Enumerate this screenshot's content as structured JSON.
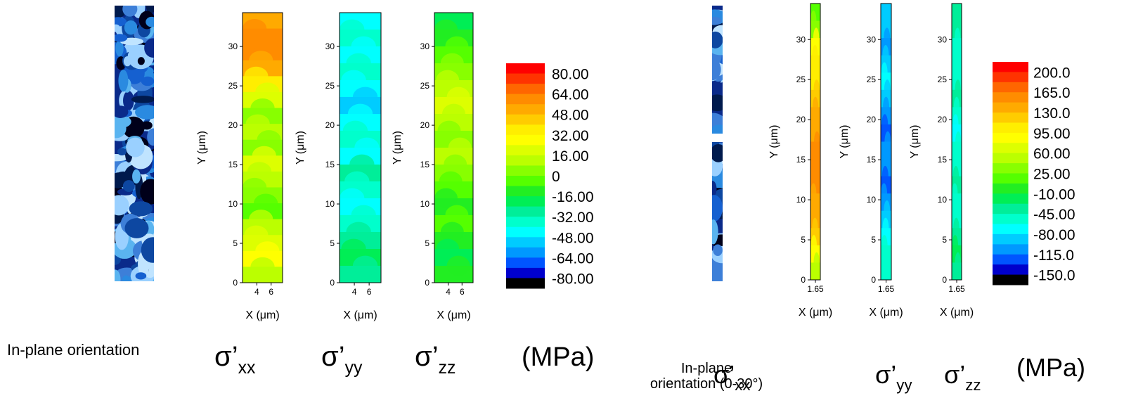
{
  "chart_data": [
    {
      "type": "contour",
      "label": {
        "symbol": "σ’",
        "subscript": "xx"
      },
      "xlabel": "X (μm)",
      "ylabel": "Y (μm)",
      "xlim": [
        2,
        7.6
      ],
      "ylim": [
        0,
        34.3
      ],
      "xticks": [
        4,
        6
      ],
      "yticks": [
        0,
        5,
        10,
        15,
        20,
        25,
        30
      ]
    },
    {
      "type": "contour",
      "label": {
        "symbol": "σ’",
        "subscript": "yy"
      },
      "xlabel": "X (μm)",
      "ylabel": "Y (μm)",
      "xlim": [
        2,
        7.6
      ],
      "ylim": [
        0,
        34.3
      ],
      "xticks": [
        4,
        6
      ],
      "yticks": [
        0,
        5,
        10,
        15,
        20,
        25,
        30
      ]
    },
    {
      "type": "contour",
      "label": {
        "symbol": "σ’",
        "subscript": "zz"
      },
      "xlabel": "X (μm)",
      "ylabel": "Y (μm)",
      "xlim": [
        2,
        7.6
      ],
      "ylim": [
        0,
        34.3
      ],
      "xticks": [
        4,
        6
      ],
      "yticks": [
        0,
        5,
        10,
        15,
        20,
        25,
        30
      ]
    },
    {
      "type": "colorbar",
      "lim": [
        -88,
        88
      ],
      "ticks": [
        {
          "value": 80,
          "label": "80.00"
        },
        {
          "value": 64,
          "label": "64.00"
        },
        {
          "value": 48,
          "label": "48.00"
        },
        {
          "value": 32,
          "label": "32.00"
        },
        {
          "value": 16,
          "label": "16.00"
        },
        0,
        {
          "value": -16,
          "label": "-16.00"
        },
        {
          "value": -32,
          "label": "-32.00"
        },
        {
          "value": -48,
          "label": "-48.00"
        },
        {
          "value": -64,
          "label": "-64.00"
        },
        {
          "value": -80,
          "label": "-80.00"
        }
      ],
      "colors": [
        "#ff0000",
        "#ff3300",
        "#ff6600",
        "#ff8c00",
        "#ffaa00",
        "#ffcc00",
        "#ffee00",
        "#ffff00",
        "#ddff00",
        "#bbff00",
        "#88ff00",
        "#55ff00",
        "#22ee22",
        "#00ee55",
        "#00ee99",
        "#00ffcc",
        "#00ffff",
        "#00ccff",
        "#0099ff",
        "#0055ff",
        "#0000cc",
        "#000000"
      ]
    },
    {
      "type": "contour",
      "label": {
        "symbol": "σ’",
        "subscript": "xx"
      },
      "xlabel": "X (μm)",
      "ylabel": "Y (μm)",
      "xlim": [
        1.6,
        1.7
      ],
      "ylim": [
        0,
        34.5
      ],
      "xticks": [
        1.65
      ],
      "yticks": [
        0,
        5,
        10,
        15,
        20,
        25,
        30
      ]
    },
    {
      "type": "contour",
      "label": {
        "symbol": "σ’",
        "subscript": "yy"
      },
      "xlabel": "X (μm)",
      "ylabel": "Y (μm)",
      "xlim": [
        1.6,
        1.7
      ],
      "ylim": [
        0,
        34.5
      ],
      "xticks": [
        1.65
      ],
      "yticks": [
        0,
        5,
        10,
        15,
        20,
        25,
        30
      ]
    },
    {
      "type": "contour",
      "label": {
        "symbol": "σ’",
        "subscript": "zz"
      },
      "xlabel": "X (μm)",
      "ylabel": "Y (μm)",
      "xlim": [
        1.6,
        1.7
      ],
      "ylim": [
        0,
        34.5
      ],
      "xticks": [
        1.65
      ],
      "yticks": [
        0,
        5,
        10,
        15,
        20,
        25,
        30
      ]
    },
    {
      "type": "colorbar",
      "lim": [
        -167.5,
        217.5
      ],
      "ticks": [
        {
          "value": 200,
          "label": "200.0"
        },
        {
          "value": 165,
          "label": "165.0"
        },
        {
          "value": 130,
          "label": "130.0"
        },
        {
          "value": 95,
          "label": "95.00"
        },
        {
          "value": 60,
          "label": "60.00"
        },
        {
          "value": 25,
          "label": "25.00"
        },
        {
          "value": -10,
          "label": "-10.00"
        },
        {
          "value": -45,
          "label": "-45.00"
        },
        {
          "value": -80,
          "label": "-80.00"
        },
        {
          "value": -115,
          "label": "-115.0"
        },
        {
          "value": -150,
          "label": "-150.0"
        }
      ],
      "colors": [
        "#ff0000",
        "#ff3300",
        "#ff6600",
        "#ff8c00",
        "#ffaa00",
        "#ffcc00",
        "#ffee00",
        "#ffff00",
        "#ddff00",
        "#bbff00",
        "#88ff00",
        "#55ff00",
        "#22ee22",
        "#00ee55",
        "#00ee99",
        "#00ffcc",
        "#00ffff",
        "#00ccff",
        "#0099ff",
        "#0055ff",
        "#0000cc",
        "#000000"
      ]
    }
  ],
  "captions": {
    "left_orientation": "In-plane orientation",
    "left_unit": "(MPa)",
    "right_orientation_1": "In-plane",
    "right_orientation_2": "orientation (0-30°)",
    "right_unit": "(MPa)"
  }
}
